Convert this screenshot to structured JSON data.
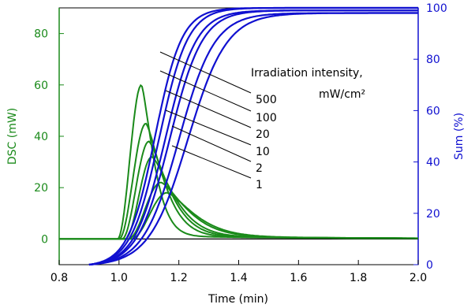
{
  "chart_data": {
    "type": "line",
    "xlabel": "Time (min)",
    "ylabel_left": "DSC (mW)",
    "ylabel_right": "Sum (%)",
    "xlim": [
      0.8,
      2.0
    ],
    "ylim_left": [
      -10,
      90
    ],
    "ylim_right": [
      0,
      100
    ],
    "x_ticks": [
      "0.8",
      "1.0",
      "1.2",
      "1.4",
      "1.6",
      "1.8",
      "2.0"
    ],
    "y_left_ticks": [
      "0",
      "20",
      "40",
      "60",
      "80"
    ],
    "y_right_ticks": [
      "0",
      "20",
      "40",
      "60",
      "80",
      "100"
    ],
    "grid": false,
    "colors": {
      "dsc": "#1a8a1a",
      "sum": "#1010d0",
      "axis": "#000000"
    },
    "annotation_title": "Irradiation intensity,",
    "annotation_unit": "mW/cm²",
    "intensity_labels": [
      "500",
      "100",
      "20",
      "10",
      "2",
      "1"
    ],
    "dsc_series": [
      {
        "intensity": "500",
        "onset": 0.995,
        "peak_x": 1.075,
        "peak_y": 60
      },
      {
        "intensity": "100",
        "onset": 1.0,
        "peak_x": 1.09,
        "peak_y": 45
      },
      {
        "intensity": "20",
        "onset": 1.01,
        "peak_x": 1.1,
        "peak_y": 38
      },
      {
        "intensity": "10",
        "onset": 1.02,
        "peak_x": 1.11,
        "peak_y": 32
      },
      {
        "intensity": "2",
        "onset": 1.03,
        "peak_x": 1.14,
        "peak_y": 22
      },
      {
        "intensity": "1",
        "onset": 1.04,
        "peak_x": 1.16,
        "peak_y": 18
      }
    ],
    "sum_series": [
      {
        "intensity": "500",
        "x_half": 1.12,
        "final": 100
      },
      {
        "intensity": "100",
        "x_half": 1.135,
        "final": 100
      },
      {
        "intensity": "20",
        "x_half": 1.155,
        "final": 99
      },
      {
        "intensity": "10",
        "x_half": 1.17,
        "final": 99
      },
      {
        "intensity": "2",
        "x_half": 1.2,
        "final": 98
      },
      {
        "intensity": "1",
        "x_half": 1.23,
        "final": 98
      }
    ]
  }
}
